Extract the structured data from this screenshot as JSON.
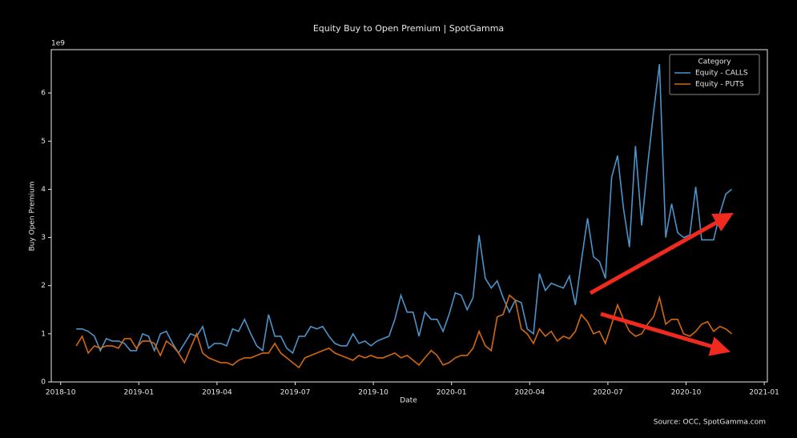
{
  "chart_data": {
    "type": "line",
    "title": "Equity Buy to Open Premium | SpotGamma",
    "xlabel": "Date",
    "ylabel": "Buy Open Premium",
    "y_offset_text": "1e9",
    "source": "Source: OCC, SpotGamma.com",
    "legend_title": "Category",
    "legend": "upper right",
    "grid": false,
    "xlim": [
      2018.72,
      2021.01
    ],
    "xticks": [
      {
        "value": 2018.75,
        "label": "2018-10"
      },
      {
        "value": 2019.0,
        "label": "2019-01"
      },
      {
        "value": 2019.25,
        "label": "2019-04"
      },
      {
        "value": 2019.5,
        "label": "2019-07"
      },
      {
        "value": 2019.75,
        "label": "2019-10"
      },
      {
        "value": 2020.0,
        "label": "2020-01"
      },
      {
        "value": 2020.25,
        "label": "2020-04"
      },
      {
        "value": 2020.5,
        "label": "2020-07"
      },
      {
        "value": 2020.75,
        "label": "2020-10"
      },
      {
        "value": 2021.0,
        "label": "2021-01"
      }
    ],
    "ylim": [
      0,
      6.9
    ],
    "yticks": [
      0,
      1,
      2,
      3,
      4,
      5,
      6
    ],
    "x": [
      2018.8,
      2018.819,
      2018.838,
      2018.858,
      2018.877,
      2018.896,
      2018.915,
      2018.935,
      2018.954,
      2018.973,
      2018.992,
      2019.012,
      2019.031,
      2019.05,
      2019.069,
      2019.088,
      2019.108,
      2019.127,
      2019.146,
      2019.165,
      2019.185,
      2019.204,
      2019.223,
      2019.242,
      2019.262,
      2019.281,
      2019.3,
      2019.319,
      2019.338,
      2019.358,
      2019.377,
      2019.396,
      2019.415,
      2019.435,
      2019.454,
      2019.473,
      2019.492,
      2019.512,
      2019.531,
      2019.55,
      2019.569,
      2019.588,
      2019.608,
      2019.627,
      2019.646,
      2019.665,
      2019.685,
      2019.704,
      2019.723,
      2019.742,
      2019.762,
      2019.781,
      2019.8,
      2019.819,
      2019.838,
      2019.858,
      2019.877,
      2019.896,
      2019.915,
      2019.935,
      2019.954,
      2019.973,
      2019.992,
      2020.012,
      2020.031,
      2020.05,
      2020.069,
      2020.088,
      2020.108,
      2020.127,
      2020.146,
      2020.165,
      2020.185,
      2020.204,
      2020.223,
      2020.242,
      2020.262,
      2020.281,
      2020.3,
      2020.319,
      2020.338,
      2020.358,
      2020.377,
      2020.396,
      2020.415,
      2020.435,
      2020.454,
      2020.473,
      2020.492,
      2020.512,
      2020.531,
      2020.55,
      2020.569,
      2020.588,
      2020.608,
      2020.627,
      2020.646,
      2020.665,
      2020.685,
      2020.704,
      2020.723,
      2020.742,
      2020.762,
      2020.781,
      2020.8,
      2020.819,
      2020.838,
      2020.858,
      2020.877,
      2020.896
    ],
    "series": [
      {
        "name": "Equity - CALLS",
        "color": "#4b93c8",
        "values": [
          1.1,
          1.1,
          1.05,
          0.95,
          0.65,
          0.9,
          0.85,
          0.85,
          0.8,
          0.65,
          0.65,
          1.0,
          0.95,
          0.65,
          1.0,
          1.05,
          0.8,
          0.6,
          0.8,
          1.0,
          0.95,
          1.15,
          0.7,
          0.8,
          0.8,
          0.75,
          1.1,
          1.05,
          1.3,
          1.0,
          0.75,
          0.65,
          1.4,
          0.95,
          0.95,
          0.7,
          0.6,
          0.95,
          0.95,
          1.15,
          1.1,
          1.15,
          0.95,
          0.8,
          0.75,
          0.75,
          1.0,
          0.8,
          0.85,
          0.75,
          0.85,
          0.9,
          0.95,
          1.3,
          1.8,
          1.45,
          1.45,
          0.95,
          1.45,
          1.3,
          1.3,
          1.05,
          1.4,
          1.85,
          1.8,
          1.5,
          1.75,
          3.05,
          2.15,
          1.95,
          2.1,
          1.75,
          1.45,
          1.7,
          1.65,
          1.1,
          1.0,
          2.25,
          1.9,
          2.05,
          2.0,
          1.95,
          2.2,
          1.6,
          2.5,
          3.4,
          2.6,
          2.5,
          2.15,
          4.25,
          4.7,
          3.6,
          2.8,
          4.9,
          3.25,
          4.5,
          5.6,
          6.6,
          3.0,
          3.7,
          3.1,
          3.0,
          3.05,
          4.05,
          2.95,
          2.95,
          2.95,
          3.5,
          3.9,
          4.0
        ]
      },
      {
        "name": "Equity - PUTS",
        "color": "#d4680f",
        "values": [
          0.75,
          0.95,
          0.6,
          0.75,
          0.7,
          0.75,
          0.75,
          0.7,
          0.9,
          0.9,
          0.7,
          0.85,
          0.85,
          0.8,
          0.55,
          0.85,
          0.75,
          0.6,
          0.4,
          0.7,
          1.0,
          0.6,
          0.5,
          0.45,
          0.4,
          0.4,
          0.35,
          0.45,
          0.5,
          0.5,
          0.55,
          0.6,
          0.6,
          0.8,
          0.6,
          0.5,
          0.4,
          0.3,
          0.5,
          0.55,
          0.6,
          0.65,
          0.7,
          0.6,
          0.55,
          0.5,
          0.45,
          0.55,
          0.5,
          0.55,
          0.5,
          0.5,
          0.55,
          0.6,
          0.5,
          0.55,
          0.45,
          0.35,
          0.5,
          0.65,
          0.55,
          0.35,
          0.4,
          0.5,
          0.55,
          0.55,
          0.7,
          1.05,
          0.75,
          0.65,
          1.35,
          1.4,
          1.8,
          1.7,
          1.1,
          1.0,
          0.8,
          1.1,
          0.95,
          1.05,
          0.85,
          0.95,
          0.9,
          1.05,
          1.4,
          1.25,
          1.0,
          1.05,
          0.8,
          1.2,
          1.6,
          1.3,
          1.05,
          0.95,
          1.0,
          1.2,
          1.35,
          1.75,
          1.2,
          1.3,
          1.3,
          1.0,
          0.95,
          1.05,
          1.2,
          1.25,
          1.05,
          1.15,
          1.1,
          1.0
        ]
      }
    ]
  }
}
